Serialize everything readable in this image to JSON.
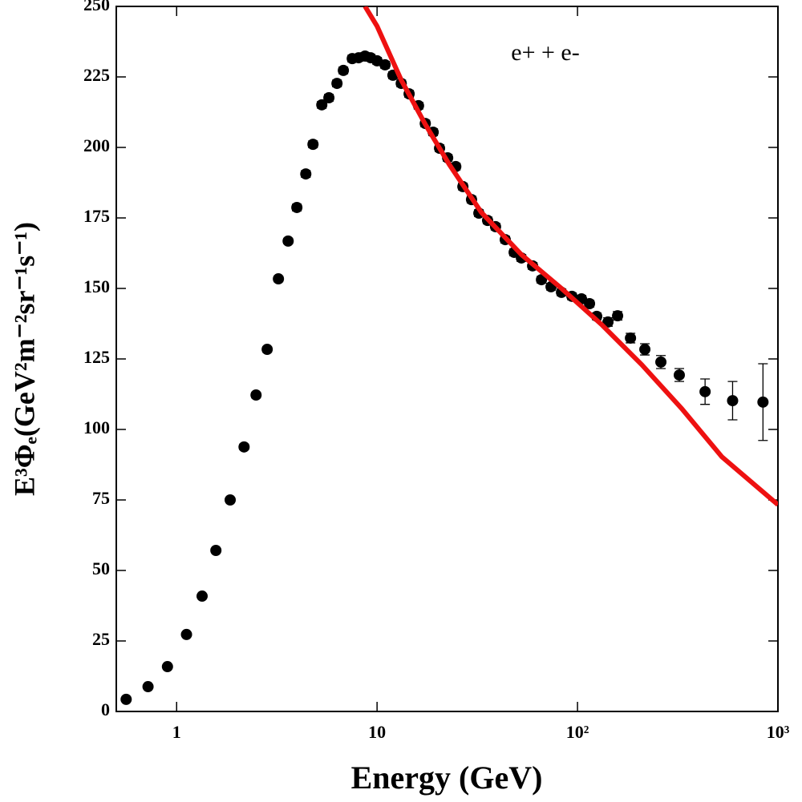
{
  "chart_data": {
    "type": "scatter",
    "x_label": "Energy (GeV)",
    "y_label": "E³Φₑ(GeV²m⁻²sr⁻¹s⁻¹)",
    "annotation": "e+ + e-",
    "xlog": true,
    "xlim": [
      0.5,
      1000
    ],
    "ylim": [
      0,
      250
    ],
    "xticks": [
      1,
      10,
      {
        "value": 100,
        "label": "10²"
      },
      {
        "value": 1000,
        "label": "10³"
      }
    ],
    "yticks": [
      0,
      25,
      50,
      75,
      100,
      125,
      150,
      175,
      200,
      225,
      250
    ],
    "series": [
      {
        "mode": "markers",
        "color": "#000000",
        "x": [
          0.56,
          0.72,
          0.9,
          1.12,
          1.34,
          1.57,
          1.85,
          2.17,
          2.49,
          2.83,
          3.22,
          3.6,
          3.98,
          4.41,
          4.79,
          5.3,
          5.75,
          6.31,
          6.79,
          7.52,
          8.09,
          8.71,
          9.29,
          10.0,
          10.96,
          12.0,
          13.2,
          14.45,
          16.1,
          17.4,
          19.05,
          20.5,
          22.5,
          24.7,
          26.8,
          29.6,
          32.2,
          35.6,
          39.0,
          43.6,
          48.3,
          52.5,
          59.7,
          66.1,
          73.8,
          83.2,
          93.8,
          104.7,
          114.8,
          124.7,
          141.9,
          158.5,
          183.8,
          216.8,
          260.6,
          322,
          433,
          594,
          842
        ],
        "values": [
          4.3,
          8.8,
          15.9,
          27.3,
          40.9,
          57.1,
          75.0,
          93.8,
          112.2,
          128.4,
          153.4,
          166.8,
          178.7,
          190.6,
          201.1,
          215.1,
          217.6,
          222.7,
          227.3,
          231.5,
          231.8,
          232.4,
          231.8,
          230.7,
          229.3,
          225.6,
          222.7,
          219.0,
          214.8,
          208.5,
          205.4,
          199.7,
          196.3,
          193.2,
          186.1,
          181.5,
          176.7,
          174.1,
          171.9,
          167.3,
          162.8,
          160.8,
          158.0,
          153.1,
          150.6,
          148.6,
          147.2,
          146.3,
          144.6,
          140.1,
          138.1,
          140.3,
          132.4,
          128.4,
          123.9,
          119.3,
          113.4,
          110.2,
          109.7
        ],
        "errors": [
          0.5,
          0.5,
          0.5,
          0.6,
          0.7,
          0.8,
          0.9,
          1.0,
          1.0,
          1.0,
          1.0,
          1.0,
          1.2,
          1.2,
          1.2,
          1.2,
          1.2,
          1.2,
          1.2,
          1.2,
          1.2,
          1.2,
          1.2,
          1.2,
          1.2,
          1.2,
          1.2,
          1.2,
          1.2,
          1.2,
          1.2,
          1.2,
          1.2,
          1.2,
          1.2,
          1.2,
          1.2,
          1.2,
          1.2,
          1.2,
          1.2,
          1.2,
          1.2,
          1.2,
          1.2,
          1.2,
          1.2,
          1.2,
          1.2,
          1.2,
          1.5,
          1.5,
          1.7,
          2.0,
          2.3,
          2.3,
          4.5,
          6.8,
          13.6
        ]
      },
      {
        "mode": "line",
        "color": "#ee1111",
        "x": [
          8.71,
          10,
          13.2,
          17.4,
          22.9,
          33.1,
          52.5,
          83.2,
          131.8,
          208.9,
          331,
          525,
          1000
        ],
        "values": [
          250,
          243,
          223.9,
          208.2,
          194,
          177,
          162,
          150,
          137.2,
          123,
          107.4,
          90.3,
          73.3
        ]
      }
    ]
  }
}
